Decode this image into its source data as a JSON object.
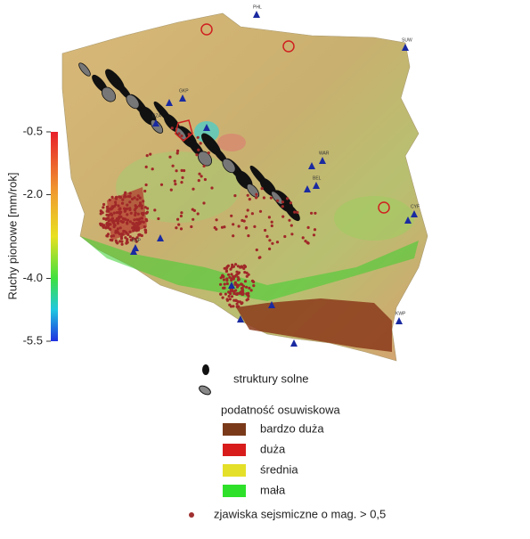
{
  "colorbar": {
    "label": "Ruchy pionowe [mm/rok]",
    "range": [
      -5.5,
      -0.5
    ],
    "ticks": [
      -0.5,
      {
        "value": -2,
        "label": "-2.0"
      },
      {
        "value": -4,
        "label": "-4.0"
      },
      -5.5
    ]
  },
  "stations": [
    "PHL",
    "SUW",
    "GKP",
    "CZA",
    "WAR",
    "BEL",
    "CYF",
    "KSP",
    "KWP"
  ],
  "legend": {
    "salt": "struktury solne",
    "landslide_title": "podatność osuwiskowa",
    "landslide_classes": [
      {
        "label": "bardzo duża",
        "color": "#7a3a1a"
      },
      {
        "label": "duża",
        "color": "#d81c1c"
      },
      {
        "label": "średnia",
        "color": "#e4e02a"
      },
      {
        "label": "mała",
        "color": "#2fe02a"
      }
    ],
    "seismic": "zjawiska sejsmiczne o mag. > 0,5"
  }
}
